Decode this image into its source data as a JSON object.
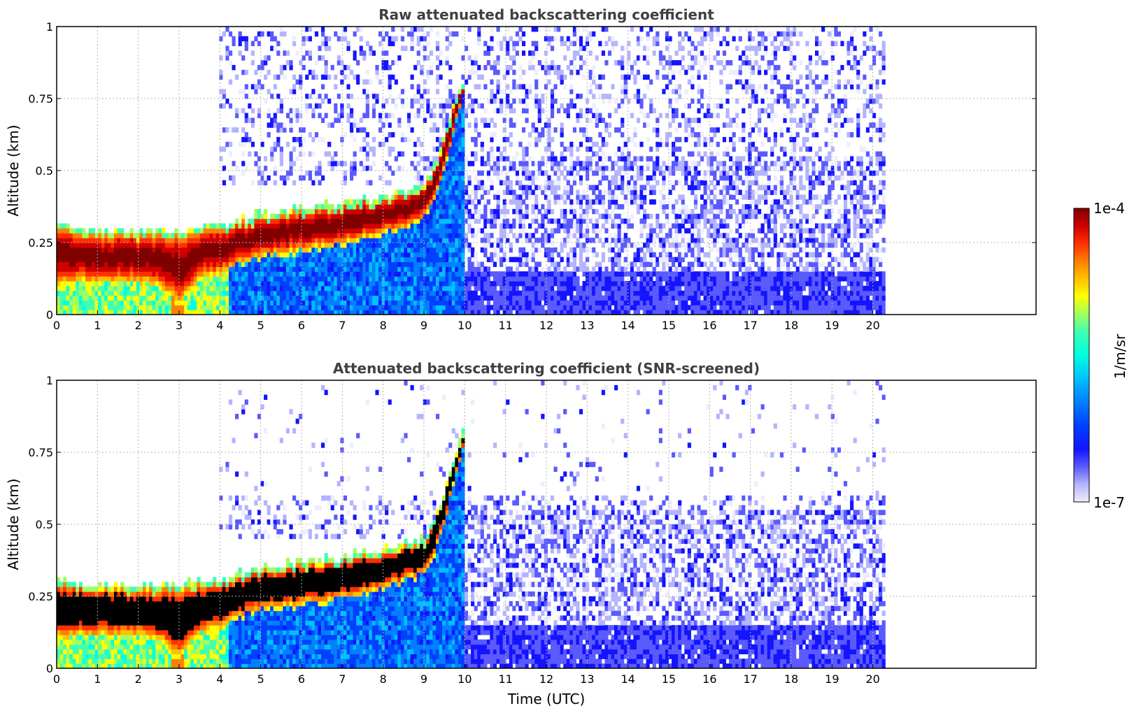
{
  "chart_data": [
    {
      "type": "heatmap",
      "title": "Raw attenuated backscattering coefficient",
      "xlabel": "",
      "ylabel": "Altitude (km)",
      "xlim": [
        0,
        24
      ],
      "ylim": [
        0,
        1
      ],
      "x_ticks": [
        "0",
        "1",
        "2",
        "3",
        "4",
        "5",
        "6",
        "7",
        "8",
        "9",
        "10",
        "11",
        "12",
        "13",
        "14",
        "15",
        "16",
        "17",
        "18",
        "19",
        "20"
      ],
      "y_ticks": [
        "0",
        "0.25",
        "0.5",
        "0.75",
        "1"
      ],
      "grid": true,
      "data_extent_x": [
        0,
        20.3
      ],
      "layer": {
        "time": [
          0,
          0.5,
          1,
          1.5,
          2,
          2.5,
          3,
          3.5,
          4,
          4.5,
          5,
          5.5,
          6,
          6.5,
          7,
          7.5,
          8,
          8.5,
          9,
          9.2,
          9.5,
          9.8,
          10
        ],
        "top_km": [
          0.32,
          0.3,
          0.29,
          0.29,
          0.29,
          0.29,
          0.29,
          0.3,
          0.31,
          0.33,
          0.35,
          0.36,
          0.37,
          0.38,
          0.39,
          0.4,
          0.41,
          0.43,
          0.45,
          0.5,
          0.62,
          0.75,
          0.83
        ],
        "bottom_km": [
          0.1,
          0.11,
          0.11,
          0.11,
          0.11,
          0.1,
          0.03,
          0.12,
          0.14,
          0.18,
          0.2,
          0.21,
          0.22,
          0.23,
          0.24,
          0.26,
          0.28,
          0.3,
          0.33,
          0.38,
          0.5,
          0.68,
          0.78
        ]
      },
      "screened": false
    },
    {
      "type": "heatmap",
      "title": "Attenuated backscattering coefficient (SNR-screened)",
      "xlabel": "Time (UTC)",
      "ylabel": "Altitude (km)",
      "xlim": [
        0,
        24
      ],
      "ylim": [
        0,
        1
      ],
      "x_ticks": [
        "0",
        "1",
        "2",
        "3",
        "4",
        "5",
        "6",
        "7",
        "8",
        "9",
        "10",
        "11",
        "12",
        "13",
        "14",
        "15",
        "16",
        "17",
        "18",
        "19",
        "20"
      ],
      "y_ticks": [
        "0",
        "0.25",
        "0.5",
        "0.75",
        "1"
      ],
      "grid": true,
      "data_extent_x": [
        0,
        20.3
      ],
      "layer": {
        "time": [
          0,
          0.5,
          1,
          1.5,
          2,
          2.5,
          3,
          3.5,
          4,
          4.5,
          5,
          5.5,
          6,
          6.5,
          7,
          7.5,
          8,
          8.5,
          9,
          9.2,
          9.5,
          9.8,
          10
        ],
        "top_km": [
          0.32,
          0.3,
          0.29,
          0.29,
          0.29,
          0.29,
          0.29,
          0.3,
          0.31,
          0.33,
          0.35,
          0.36,
          0.37,
          0.38,
          0.39,
          0.4,
          0.41,
          0.43,
          0.45,
          0.5,
          0.62,
          0.75,
          0.83
        ],
        "bottom_km": [
          0.1,
          0.11,
          0.11,
          0.11,
          0.11,
          0.1,
          0.03,
          0.12,
          0.14,
          0.18,
          0.2,
          0.21,
          0.22,
          0.23,
          0.24,
          0.26,
          0.28,
          0.3,
          0.33,
          0.38,
          0.5,
          0.68,
          0.78
        ]
      },
      "screened": true
    }
  ],
  "colorbar": {
    "max_label": "1e-4",
    "min_label": "1e-7",
    "unit_label": "1/m/sr",
    "colors": [
      "#ededff",
      "#b4b4ff",
      "#5a5aff",
      "#1414ff",
      "#0040ff",
      "#0080ff",
      "#00c0ff",
      "#00ffe0",
      "#40ffb0",
      "#a0ff60",
      "#ffff00",
      "#ffc000",
      "#ff8000",
      "#ff3000",
      "#d00000",
      "#800000"
    ]
  }
}
